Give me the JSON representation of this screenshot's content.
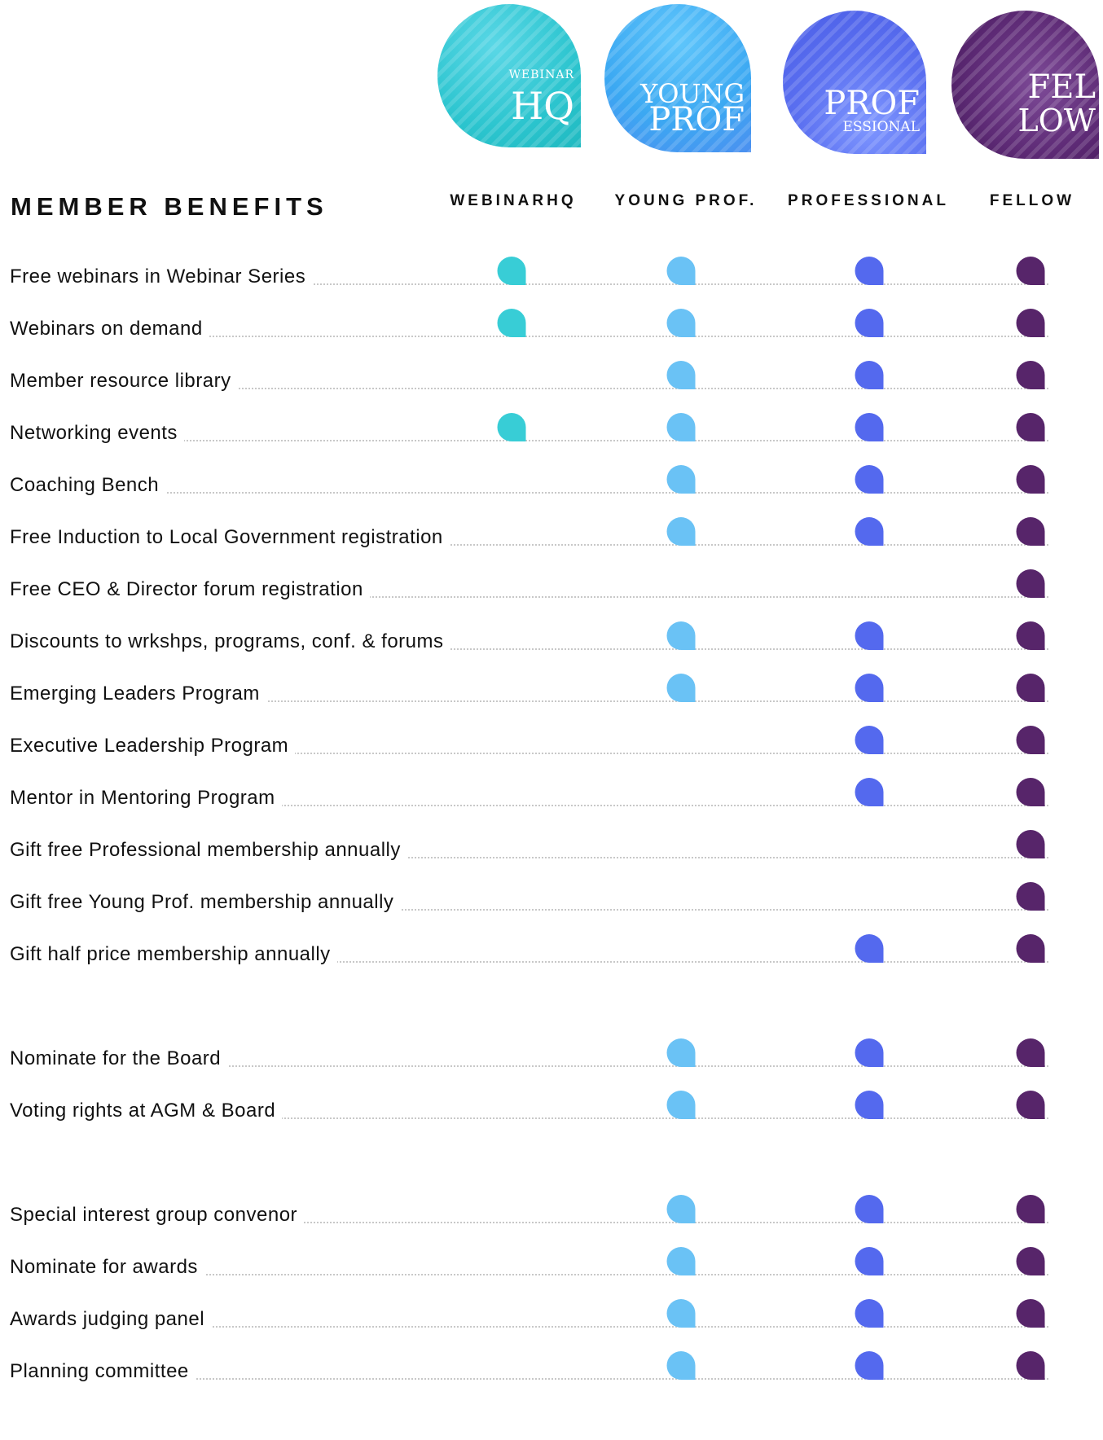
{
  "badges": [
    {
      "small": "WEBINAR",
      "big": "HQ"
    },
    {
      "line1": "YOUNG",
      "line2": "PROF"
    },
    {
      "big": "PROF",
      "small": "ESSIONAL"
    },
    {
      "line1": "FEL",
      "line2": "LOW"
    }
  ],
  "title": "MEMBER BENEFITS",
  "columns": [
    "WEBINARHQ",
    "YOUNG PROF.",
    "PROFESSIONAL",
    "FELLOW"
  ],
  "colors": [
    "#38CDD6",
    "#6AC2F5",
    "#5469EE",
    "#57256A"
  ],
  "groups": [
    [
      {
        "label": "Free webinars in Webinar Series",
        "marks": [
          true,
          true,
          true,
          true
        ]
      },
      {
        "label": "Webinars on demand",
        "marks": [
          true,
          true,
          true,
          true
        ]
      },
      {
        "label": "Member resource library",
        "marks": [
          false,
          true,
          true,
          true
        ]
      },
      {
        "label": "Networking events",
        "marks": [
          true,
          true,
          true,
          true
        ]
      },
      {
        "label": "Coaching Bench",
        "marks": [
          false,
          true,
          true,
          true
        ]
      },
      {
        "label": "Free Induction to Local Government registration",
        "marks": [
          false,
          true,
          true,
          true
        ]
      },
      {
        "label": "Free CEO & Director forum registration",
        "marks": [
          false,
          false,
          false,
          true
        ]
      },
      {
        "label": "Discounts to wrkshps, programs, conf. & forums",
        "marks": [
          false,
          true,
          true,
          true
        ]
      },
      {
        "label": "Emerging Leaders Program",
        "marks": [
          false,
          true,
          true,
          true
        ]
      },
      {
        "label": "Executive Leadership Program",
        "marks": [
          false,
          false,
          true,
          true
        ]
      },
      {
        "label": "Mentor in Mentoring Program",
        "marks": [
          false,
          false,
          true,
          true
        ]
      },
      {
        "label": "Gift free Professional membership annually",
        "marks": [
          false,
          false,
          false,
          true
        ]
      },
      {
        "label": "Gift free Young Prof. membership annually",
        "marks": [
          false,
          false,
          false,
          true
        ]
      },
      {
        "label": "Gift half price membership annually",
        "marks": [
          false,
          false,
          true,
          true
        ]
      }
    ],
    [
      {
        "label": "Nominate for the Board",
        "marks": [
          false,
          true,
          true,
          true
        ]
      },
      {
        "label": "Voting rights at AGM & Board",
        "marks": [
          false,
          true,
          true,
          true
        ]
      }
    ],
    [
      {
        "label": "Special interest group convenor",
        "marks": [
          false,
          true,
          true,
          true
        ]
      },
      {
        "label": "Nominate for awards",
        "marks": [
          false,
          true,
          true,
          true
        ]
      },
      {
        "label": "Awards judging panel",
        "marks": [
          false,
          true,
          true,
          true
        ]
      },
      {
        "label": "Planning committee",
        "marks": [
          false,
          true,
          true,
          true
        ]
      }
    ]
  ]
}
